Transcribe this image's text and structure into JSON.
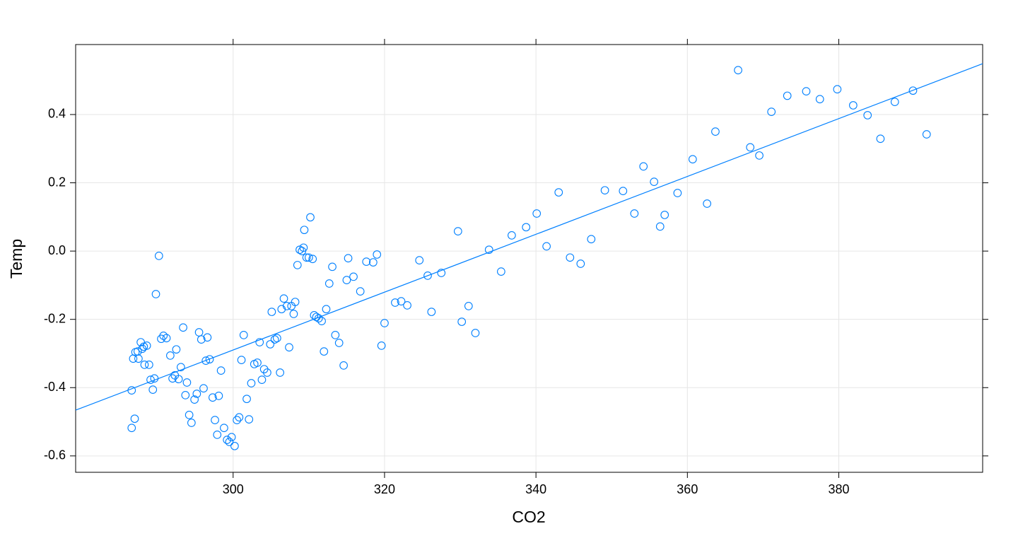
{
  "chart_data": {
    "type": "scatter",
    "x_label": "CO2",
    "y_label": "Temp",
    "color": "#0080ff",
    "grid": true,
    "xlim": [
      279.2,
      399.0
    ],
    "ylim": [
      -0.648,
      0.605
    ],
    "xticks": [
      300,
      320,
      340,
      360,
      380
    ],
    "yticks": [
      {
        "value": 0.4,
        "label": "0.4"
      },
      {
        "value": 0.2,
        "label": "0.2"
      },
      {
        "value": 0.0,
        "label": "0.0"
      },
      {
        "value": -0.2,
        "label": "-0.2"
      },
      {
        "value": -0.4,
        "label": "-0.4"
      },
      {
        "value": -0.6,
        "label": "-0.6"
      }
    ],
    "trend_line": {
      "x": [
        279.2,
        399.0
      ],
      "y": [
        -0.466,
        0.549
      ]
    },
    "series": [
      {
        "name": "Temp",
        "color": "#0080ff",
        "x": [
          286.6,
          286.6,
          287.0,
          286.8,
          287.1,
          287.4,
          287.5,
          287.8,
          288.0,
          288.2,
          288.6,
          288.3,
          288.9,
          289.1,
          289.4,
          289.6,
          289.8,
          290.2,
          290.5,
          290.8,
          291.2,
          291.7,
          292.0,
          292.3,
          292.5,
          292.8,
          293.1,
          293.4,
          293.7,
          293.9,
          294.2,
          294.5,
          294.9,
          295.2,
          295.5,
          295.8,
          296.1,
          296.4,
          296.6,
          296.9,
          297.3,
          297.6,
          297.9,
          298.1,
          298.4,
          298.8,
          299.2,
          299.5,
          299.8,
          300.2,
          300.5,
          300.8,
          301.1,
          301.4,
          301.8,
          302.1,
          302.4,
          302.8,
          303.2,
          303.5,
          303.8,
          304.1,
          304.5,
          304.9,
          305.1,
          305.5,
          305.8,
          306.2,
          306.4,
          306.7,
          307.1,
          307.4,
          307.7,
          308.0,
          308.2,
          308.5,
          308.8,
          309.1,
          309.3,
          309.4,
          309.7,
          310.0,
          310.2,
          310.5,
          310.7,
          311.0,
          311.3,
          311.7,
          312.0,
          312.3,
          312.7,
          313.1,
          313.5,
          314.0,
          314.6,
          315.0,
          315.2,
          315.9,
          316.8,
          317.6,
          318.5,
          319.0,
          319.6,
          320.0,
          321.4,
          322.2,
          323.0,
          324.6,
          325.7,
          326.2,
          327.5,
          329.7,
          330.2,
          331.1,
          332.0,
          333.8,
          335.4,
          336.8,
          338.7,
          340.1,
          341.4,
          343.0,
          344.5,
          345.9,
          347.3,
          349.1,
          351.5,
          353.0,
          354.2,
          355.6,
          356.4,
          357.0,
          358.7,
          360.7,
          362.6,
          363.7,
          366.7,
          368.3,
          369.5,
          371.1,
          373.2,
          375.7,
          377.5,
          379.8,
          381.9,
          383.8,
          385.5,
          387.4,
          389.8,
          391.6
        ],
        "values": [
          -0.408,
          -0.518,
          -0.491,
          -0.315,
          -0.296,
          -0.294,
          -0.315,
          -0.267,
          -0.286,
          -0.28,
          -0.277,
          -0.333,
          -0.333,
          -0.377,
          -0.406,
          -0.373,
          -0.126,
          -0.014,
          -0.257,
          -0.248,
          -0.255,
          -0.306,
          -0.373,
          -0.364,
          -0.288,
          -0.375,
          -0.34,
          -0.224,
          -0.422,
          -0.385,
          -0.48,
          -0.503,
          -0.435,
          -0.418,
          -0.238,
          -0.259,
          -0.402,
          -0.321,
          -0.253,
          -0.317,
          -0.429,
          -0.495,
          -0.538,
          -0.424,
          -0.35,
          -0.518,
          -0.553,
          -0.559,
          -0.545,
          -0.571,
          -0.495,
          -0.487,
          -0.319,
          -0.246,
          -0.433,
          -0.493,
          -0.387,
          -0.331,
          -0.327,
          -0.267,
          -0.377,
          -0.346,
          -0.356,
          -0.273,
          -0.178,
          -0.259,
          -0.255,
          -0.356,
          -0.17,
          -0.139,
          -0.161,
          -0.282,
          -0.161,
          -0.184,
          -0.149,
          -0.041,
          0.004,
          0.0,
          0.01,
          0.062,
          -0.019,
          -0.019,
          0.099,
          -0.023,
          -0.188,
          -0.193,
          -0.197,
          -0.205,
          -0.294,
          -0.17,
          -0.095,
          -0.046,
          -0.246,
          -0.269,
          -0.335,
          -0.085,
          -0.021,
          -0.075,
          -0.118,
          -0.031,
          -0.033,
          -0.01,
          -0.277,
          -0.211,
          -0.151,
          -0.147,
          -0.159,
          -0.027,
          -0.072,
          -0.178,
          -0.064,
          0.058,
          -0.207,
          -0.161,
          -0.24,
          0.004,
          -0.06,
          0.046,
          0.07,
          0.11,
          0.014,
          0.172,
          -0.019,
          -0.037,
          0.035,
          0.178,
          0.176,
          0.11,
          0.248,
          0.203,
          0.072,
          0.106,
          0.17,
          0.269,
          0.139,
          0.35,
          0.53,
          0.304,
          0.28,
          0.408,
          0.455,
          0.468,
          0.445,
          0.474,
          0.427,
          0.398,
          0.329,
          0.437,
          0.47,
          0.342
        ]
      }
    ]
  }
}
